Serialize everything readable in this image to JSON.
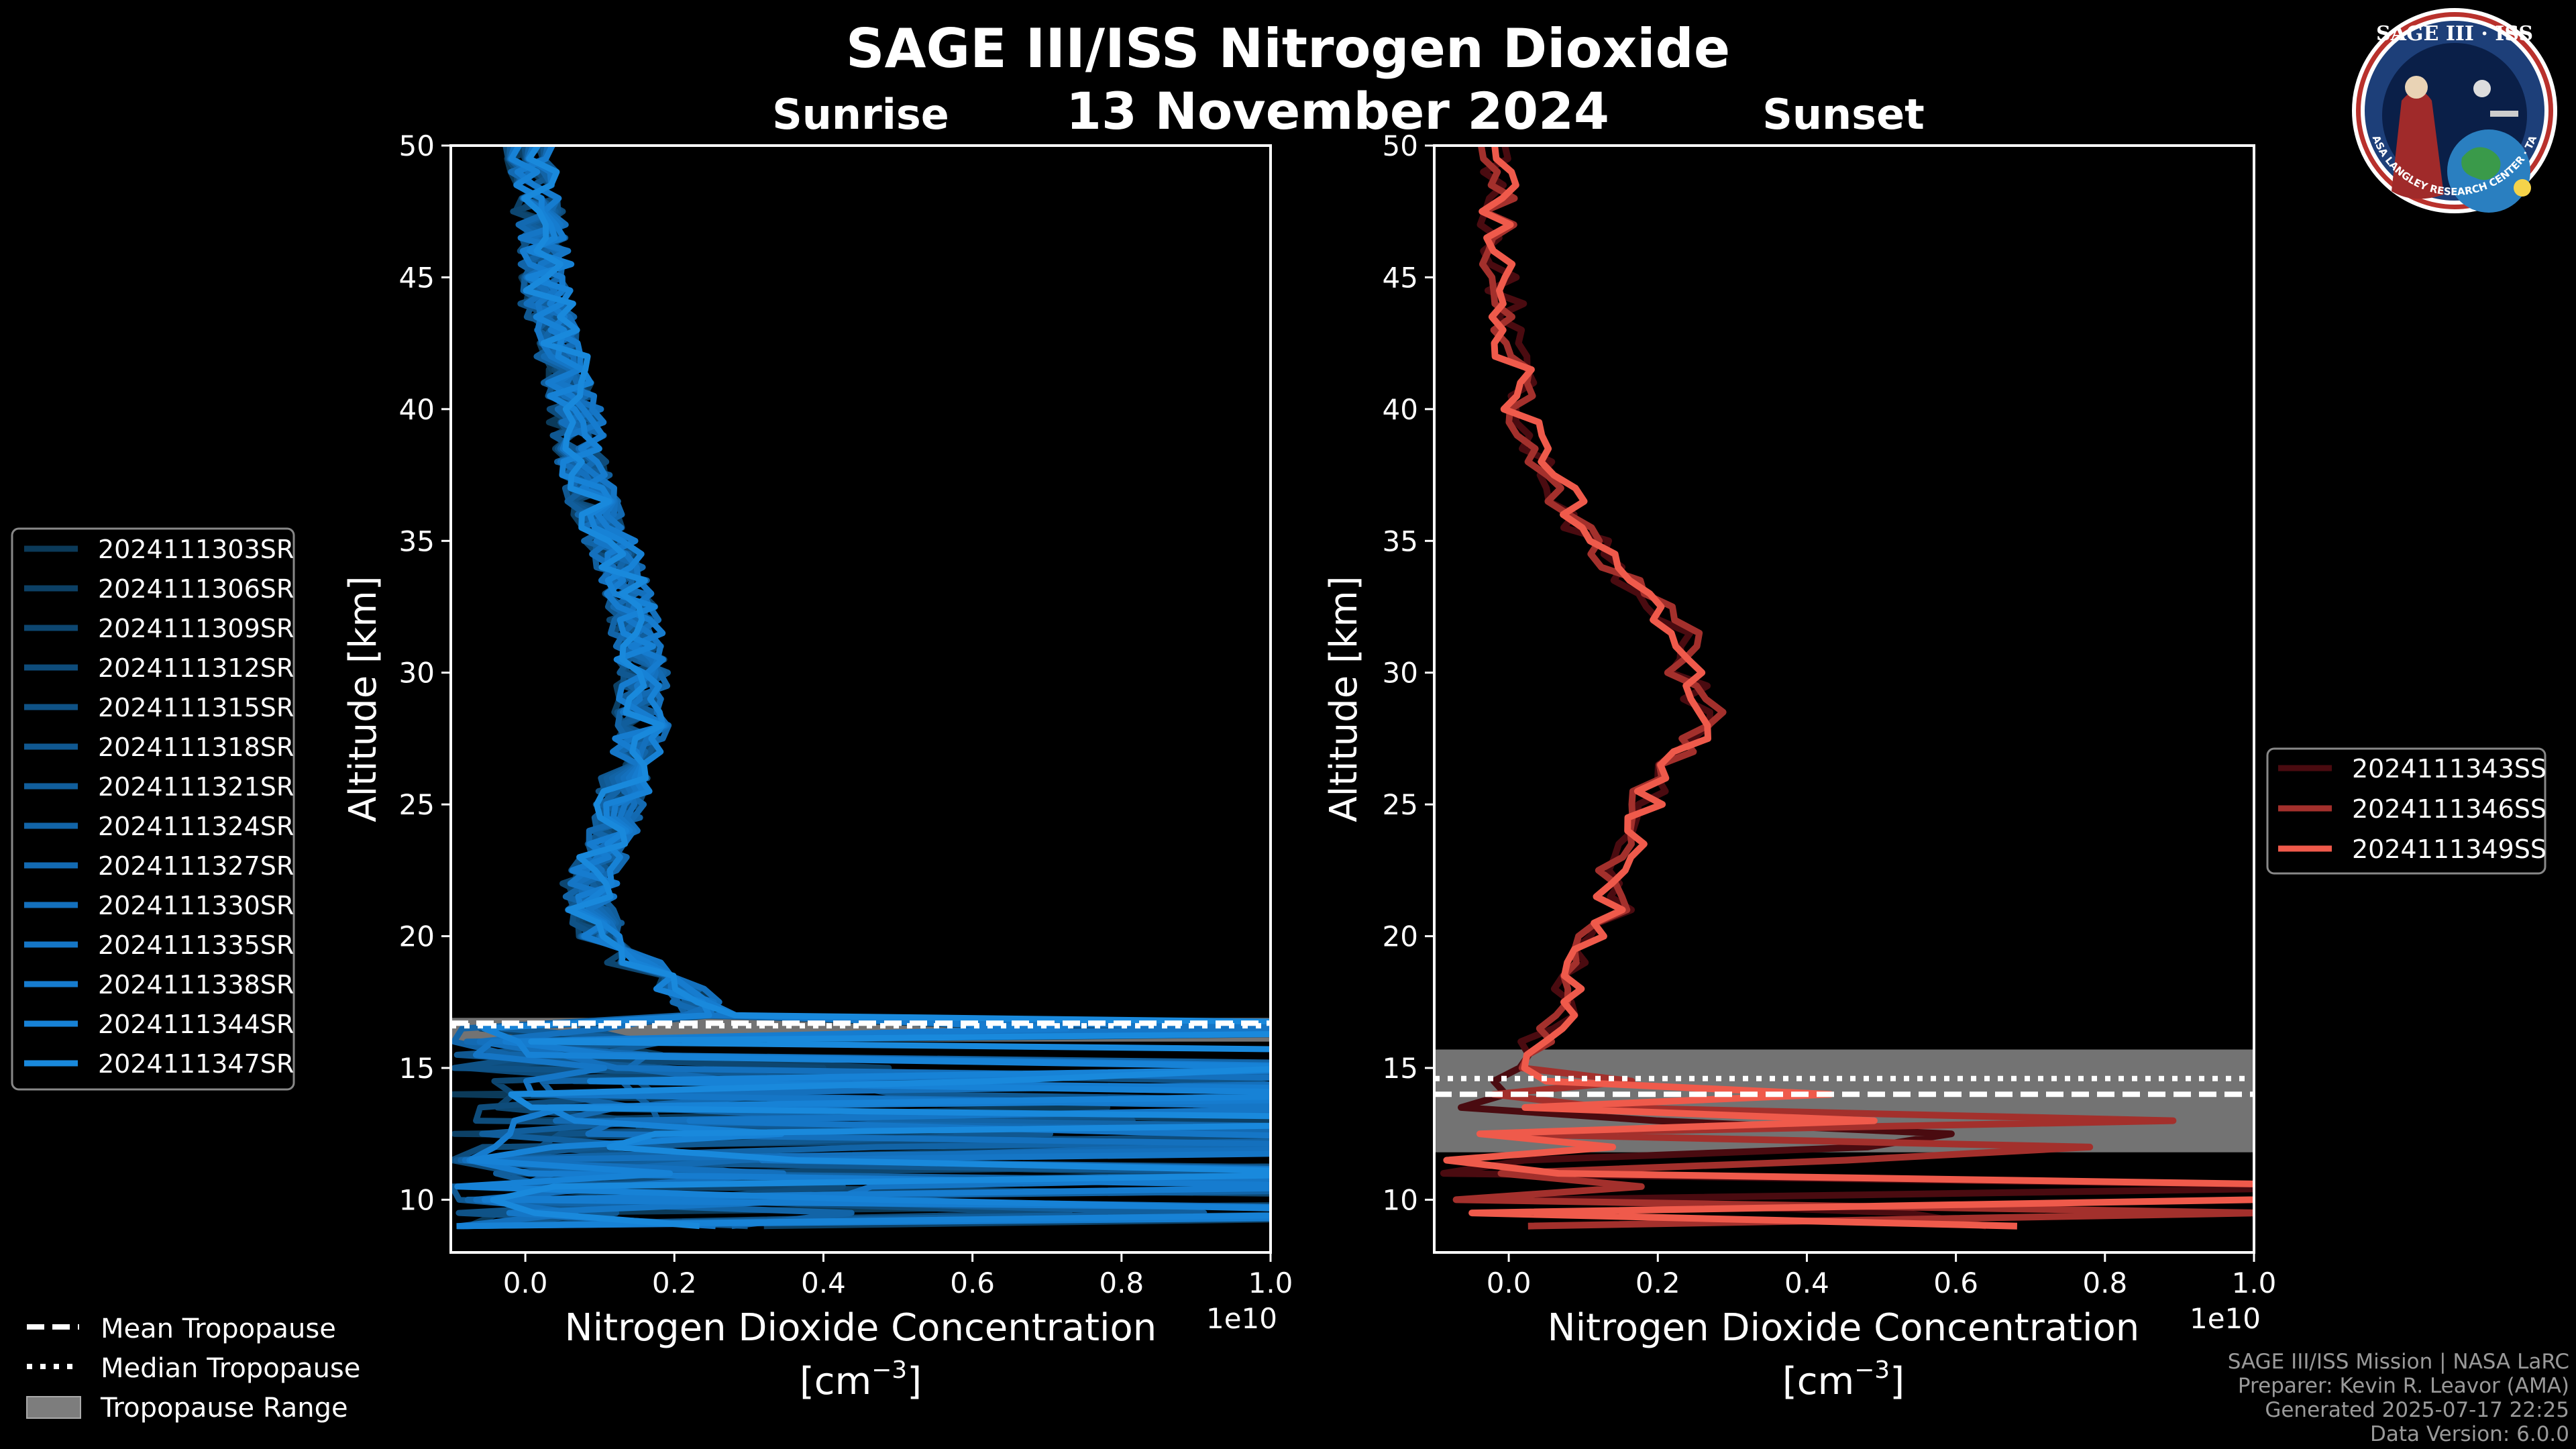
{
  "header": {
    "title": "SAGE III/ISS Nitrogen Dioxide",
    "date": "13 November 2024"
  },
  "logo": {
    "top_text": "SAGE III · ISS",
    "ring_text": "BALL · NASA LANGLEY RESEARCH CENTER · TAS-I · ESA"
  },
  "tropopause_legend": {
    "mean": "Mean Tropopause",
    "median": "Median Tropopause",
    "range": "Tropopause Range"
  },
  "footer": {
    "line1": "SAGE III/ISS Mission | NASA LaRC",
    "line2": "Preparer: Kevin R. Leavor (AMA)",
    "line3": "Generated 2025-07-17 22:25",
    "line4": "Data Version: 6.0.0"
  },
  "chart_data": [
    {
      "type": "line",
      "title": "Sunrise",
      "xlabel": "Nitrogen Dioxide Concentration",
      "xlabel_unit": "[cm",
      "xlabel_unit_exp": "−3",
      "xlabel_unit_close": "]",
      "ylabel": "Altitude [km]",
      "x_offset_label": "1e10",
      "xlim": [
        -0.1,
        1.0
      ],
      "ylim": [
        8,
        50
      ],
      "xticks": [
        "0.0",
        "0.2",
        "0.4",
        "0.6",
        "0.8",
        "1.0"
      ],
      "yticks": [
        "10",
        "15",
        "20",
        "25",
        "30",
        "35",
        "40",
        "45",
        "50"
      ],
      "tropopause": {
        "mean": 16.7,
        "median": 16.6,
        "range": [
          16.0,
          16.9
        ]
      },
      "series": [
        {
          "name": "2024111303SR",
          "color": "#0b3a59"
        },
        {
          "name": "2024111306SR",
          "color": "#0c4065"
        },
        {
          "name": "2024111309SR",
          "color": "#0d4670"
        },
        {
          "name": "2024111312SR",
          "color": "#0e4c7b"
        },
        {
          "name": "2024111315SR",
          "color": "#0f5286"
        },
        {
          "name": "2024111318SR",
          "color": "#105891"
        },
        {
          "name": "2024111321SR",
          "color": "#115e9c"
        },
        {
          "name": "2024111324SR",
          "color": "#1264a7"
        },
        {
          "name": "2024111327SR",
          "color": "#136ab2"
        },
        {
          "name": "2024111330SR",
          "color": "#1470bd"
        },
        {
          "name": "2024111335SR",
          "color": "#1576c6"
        },
        {
          "name": "2024111338SR",
          "color": "#167ccf"
        },
        {
          "name": "2024111344SR",
          "color": "#1782d6"
        },
        {
          "name": "2024111347SR",
          "color": "#1989dc"
        }
      ],
      "profile": {
        "alt": [
          50,
          48,
          46,
          44,
          42,
          40,
          38,
          36,
          34,
          32,
          30,
          28,
          26,
          24,
          22,
          21,
          20,
          19,
          18,
          17
        ],
        "no2": [
          0.0,
          0.01,
          0.02,
          0.02,
          0.04,
          0.06,
          0.07,
          0.09,
          0.12,
          0.14,
          0.15,
          0.15,
          0.13,
          0.11,
          0.08,
          0.08,
          0.1,
          0.14,
          0.2,
          0.24
        ]
      }
    },
    {
      "type": "line",
      "title": "Sunset",
      "xlabel": "Nitrogen Dioxide Concentration",
      "xlabel_unit": "[cm",
      "xlabel_unit_exp": "−3",
      "xlabel_unit_close": "]",
      "ylabel": "Altitude [km]",
      "x_offset_label": "1e10",
      "xlim": [
        -0.1,
        1.0
      ],
      "ylim": [
        8,
        50
      ],
      "xticks": [
        "0.0",
        "0.2",
        "0.4",
        "0.6",
        "0.8",
        "1.0"
      ],
      "yticks": [
        "10",
        "15",
        "20",
        "25",
        "30",
        "35",
        "40",
        "45",
        "50"
      ],
      "tropopause": {
        "mean": 14.0,
        "median": 14.6,
        "range": [
          11.8,
          15.7
        ]
      },
      "series": [
        {
          "name": "2024111343SS",
          "color": "#4a0b10"
        },
        {
          "name": "2024111346SS",
          "color": "#a3302c"
        },
        {
          "name": "2024111349SS",
          "color": "#ef5a4b"
        }
      ],
      "profile": {
        "alt": [
          50,
          48,
          46,
          44,
          42,
          40,
          38,
          36,
          34,
          33,
          32,
          31,
          30,
          29,
          28,
          27,
          26,
          25,
          24,
          23,
          22,
          21,
          20,
          19,
          18,
          17,
          16,
          15
        ],
        "no2": [
          0.0,
          0.0,
          0.0,
          0.01,
          0.02,
          0.03,
          0.06,
          0.1,
          0.15,
          0.2,
          0.23,
          0.26,
          0.25,
          0.27,
          0.29,
          0.24,
          0.21,
          0.2,
          0.19,
          0.16,
          0.15,
          0.16,
          0.13,
          0.1,
          0.1,
          0.08,
          0.05,
          0.02
        ]
      }
    }
  ]
}
